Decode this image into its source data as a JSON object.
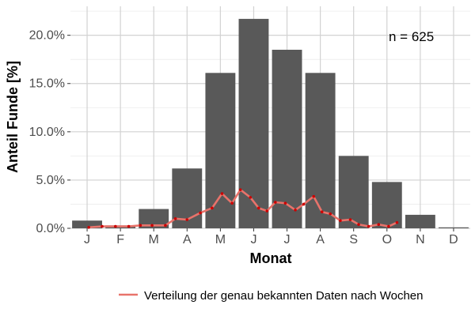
{
  "chart_data": {
    "type": "bar",
    "xlabel": "Monat",
    "ylabel": "Anteil Funde [%]",
    "ylim": [
      0,
      23
    ],
    "yticks": [
      0,
      5,
      10,
      15,
      20
    ],
    "ytick_labels": [
      "0.0%",
      "5.0%",
      "10.0%",
      "15.0%",
      "20.0%"
    ],
    "categories": [
      "J",
      "F",
      "M",
      "A",
      "M",
      "J",
      "J",
      "A",
      "S",
      "O",
      "N",
      "D"
    ],
    "values": [
      0.8,
      0.3,
      2.0,
      6.2,
      16.1,
      21.7,
      18.5,
      16.1,
      7.5,
      4.8,
      1.4,
      0.1
    ],
    "bar_color": "#595959",
    "annotation": "n = 625",
    "line_series": {
      "name": "Verteilung der genau bekannten Daten nach Wochen",
      "color": "#e8736b",
      "point_color": "#cc0000",
      "x": [
        1.05,
        1.45,
        1.85,
        2.25,
        2.6,
        2.95,
        3.35,
        3.65,
        4.0,
        4.4,
        4.75,
        5.05,
        5.35,
        5.6,
        5.9,
        6.15,
        6.4,
        6.65,
        6.95,
        7.25,
        7.5,
        7.8,
        8.05,
        8.3,
        8.6,
        8.9,
        9.15,
        9.45,
        9.75,
        10.05,
        10.3
      ],
      "y": [
        0.1,
        0.2,
        0.2,
        0.2,
        0.3,
        0.3,
        0.3,
        1.0,
        0.9,
        1.6,
        2.1,
        3.6,
        2.6,
        4.0,
        3.2,
        2.1,
        1.8,
        2.7,
        2.6,
        1.9,
        2.5,
        3.3,
        1.7,
        1.5,
        0.8,
        0.9,
        0.4,
        0.2,
        0.4,
        0.2,
        0.6
      ]
    },
    "legend_position": "bottom",
    "grid": true
  }
}
